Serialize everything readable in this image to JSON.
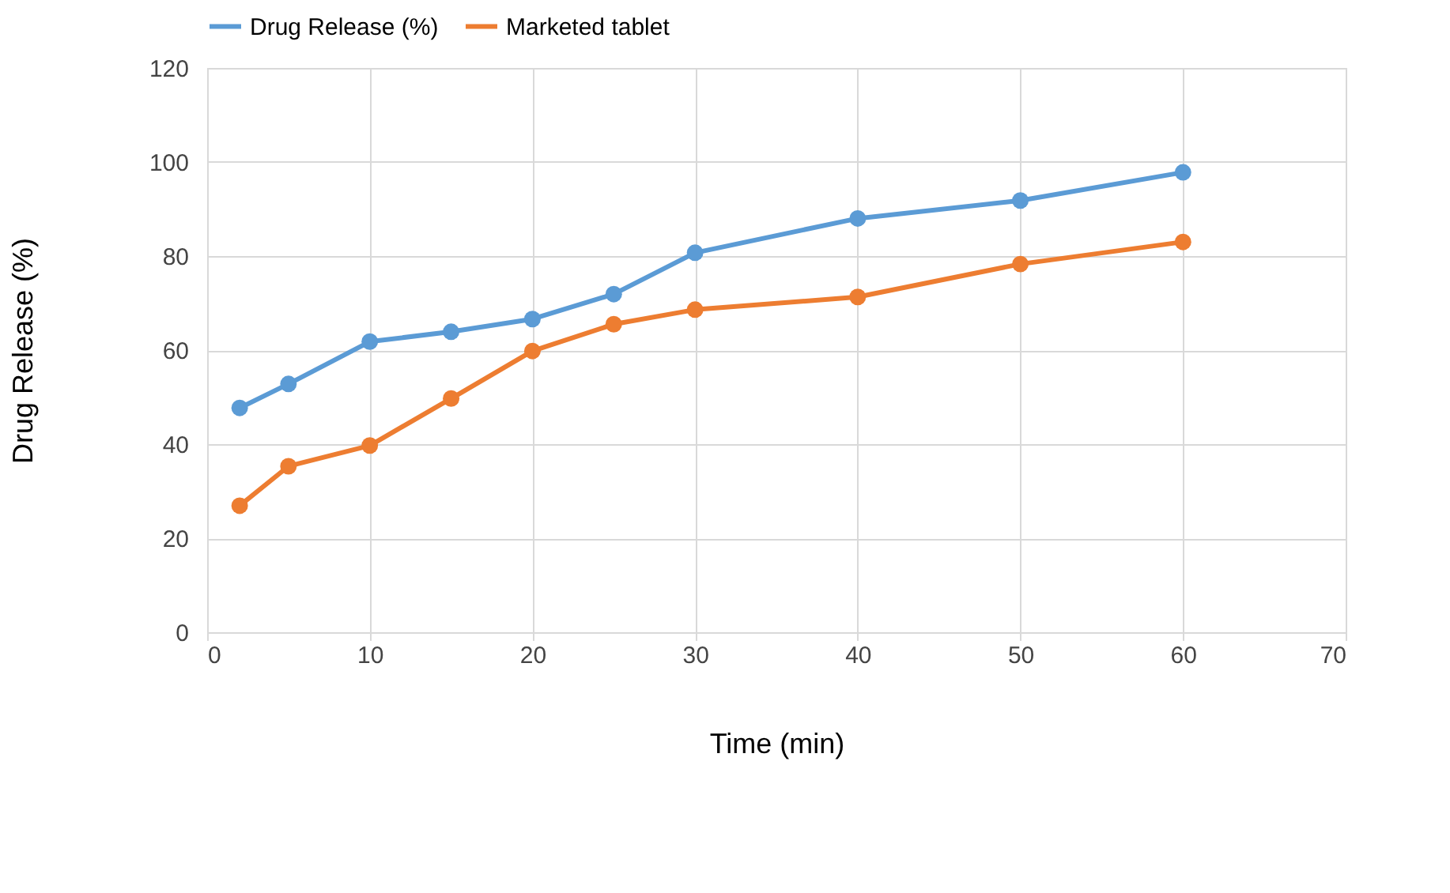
{
  "chart_data": {
    "type": "line",
    "xlabel": "Time (min)",
    "ylabel": "Drug Release (%)",
    "x": [
      2,
      5,
      10,
      15,
      20,
      25,
      30,
      40,
      50,
      60
    ],
    "series": [
      {
        "name": "Drug Release (%)",
        "color": "#5b9bd5",
        "values": [
          47.7,
          52.8,
          61.8,
          63.9,
          66.6,
          71.9,
          80.7,
          88,
          91.8,
          97.8
        ]
      },
      {
        "name": "Marketed tablet",
        "color": "#ed7d31",
        "values": [
          26.9,
          35.3,
          39.7,
          49.7,
          59.8,
          65.5,
          68.6,
          71.3,
          78.3,
          83
        ]
      }
    ],
    "xlim": [
      0,
      70
    ],
    "xticks": [
      0,
      10,
      20,
      30,
      40,
      50,
      60,
      70
    ],
    "ylim": [
      0,
      120
    ],
    "yticks": [
      0,
      20,
      40,
      60,
      80,
      100,
      120
    ],
    "grid": true,
    "legend": "top",
    "marker": "circle",
    "line_style": "solid"
  }
}
